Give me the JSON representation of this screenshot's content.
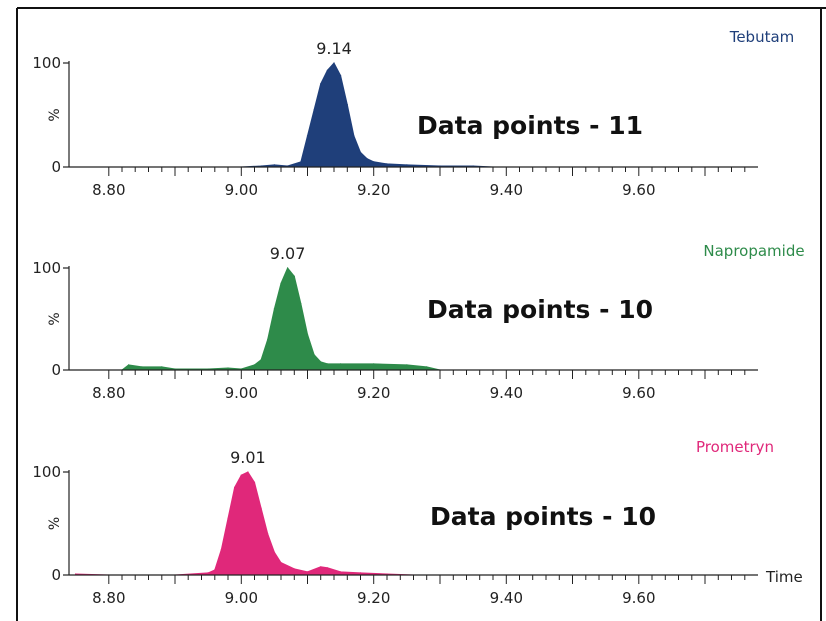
{
  "chart_data": [
    {
      "type": "area",
      "compound": "Tebutam",
      "compound_color": "#1f3f7a",
      "peak_label": "9.14",
      "annotation": "Data points - 11",
      "ylabel": "%",
      "ylim": [
        0,
        100
      ],
      "yticks": [
        "0",
        "100"
      ],
      "xlim": [
        8.74,
        9.78
      ],
      "xticks": [
        "8.80",
        "9.00",
        "9.20",
        "9.40",
        "9.60"
      ],
      "x": [
        8.9,
        9.0,
        9.03,
        9.05,
        9.07,
        9.09,
        9.1,
        9.11,
        9.12,
        9.13,
        9.14,
        9.15,
        9.16,
        9.17,
        9.18,
        9.19,
        9.2,
        9.22,
        9.25,
        9.3,
        9.35,
        9.38
      ],
      "y": [
        0,
        0,
        1,
        2,
        1,
        5,
        30,
        55,
        80,
        93,
        100,
        88,
        60,
        30,
        14,
        8,
        5,
        3,
        2,
        1,
        1,
        0
      ]
    },
    {
      "type": "area",
      "compound": "Napropamide",
      "compound_color": "#2e8b4a",
      "peak_label": "9.07",
      "annotation": "Data points - 10",
      "ylabel": "%",
      "ylim": [
        0,
        100
      ],
      "yticks": [
        "0",
        "100"
      ],
      "xlim": [
        8.74,
        9.78
      ],
      "xticks": [
        "8.80",
        "9.00",
        "9.20",
        "9.40",
        "9.60"
      ],
      "x": [
        8.82,
        8.83,
        8.85,
        8.88,
        8.9,
        8.95,
        8.98,
        9.0,
        9.02,
        9.03,
        9.04,
        9.05,
        9.06,
        9.07,
        9.08,
        9.09,
        9.1,
        9.11,
        9.12,
        9.13,
        9.15,
        9.2,
        9.25,
        9.28,
        9.3
      ],
      "y": [
        0,
        5,
        3,
        3,
        1,
        1,
        2,
        1,
        5,
        10,
        30,
        60,
        85,
        100,
        92,
        65,
        35,
        15,
        8,
        6,
        6,
        6,
        5,
        3,
        0
      ]
    },
    {
      "type": "area",
      "compound": "Prometryn",
      "compound_color": "#e0287a",
      "peak_label": "9.01",
      "annotation": "Data points - 10",
      "ylabel": "%",
      "ylim": [
        0,
        100
      ],
      "yticks": [
        "0",
        "100"
      ],
      "xlim": [
        8.74,
        9.78
      ],
      "xticks": [
        "8.80",
        "9.00",
        "9.20",
        "9.40",
        "9.60"
      ],
      "xlabel": "Time",
      "x": [
        8.75,
        8.8,
        8.9,
        8.95,
        8.96,
        8.97,
        8.98,
        8.99,
        9.0,
        9.01,
        9.02,
        9.03,
        9.04,
        9.05,
        9.06,
        9.08,
        9.1,
        9.12,
        9.13,
        9.15,
        9.18,
        9.22,
        9.26
      ],
      "y": [
        1,
        0,
        0,
        2,
        5,
        25,
        55,
        85,
        97,
        100,
        90,
        65,
        40,
        22,
        12,
        6,
        3,
        8,
        7,
        3,
        2,
        1,
        0
      ]
    }
  ]
}
